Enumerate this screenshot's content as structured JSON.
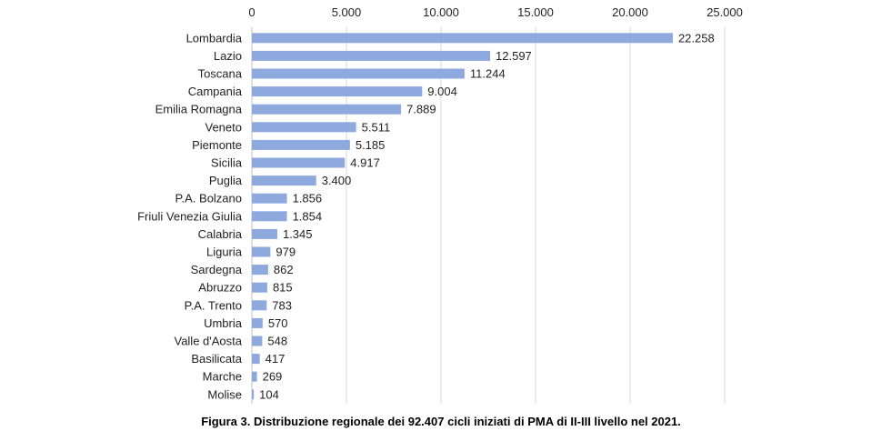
{
  "caption": "Figura 3. Distribuzione regionale dei 92.407 cicli iniziati di PMA di II-III livello nel 2021.",
  "chart_data": {
    "type": "bar",
    "orientation": "horizontal",
    "categories": [
      "Lombardia",
      "Lazio",
      "Toscana",
      "Campania",
      "Emilia Romagna",
      "Veneto",
      "Piemonte",
      "Sicilia",
      "Puglia",
      "P.A. Bolzano",
      "Friuli Venezia Giulia",
      "Calabria",
      "Liguria",
      "Sardegna",
      "Abruzzo",
      "P.A. Trento",
      "Umbria",
      "Valle d'Aosta",
      "Basilicata",
      "Marche",
      "Molise"
    ],
    "values": [
      22258,
      12597,
      11244,
      9004,
      7889,
      5511,
      5185,
      4917,
      3400,
      1856,
      1854,
      1345,
      979,
      862,
      815,
      783,
      570,
      548,
      417,
      269,
      104
    ],
    "value_labels": [
      "22.258",
      "12.597",
      "11.244",
      "9.004",
      "7.889",
      "5.511",
      "5.185",
      "4.917",
      "3.400",
      "1.856",
      "1.854",
      "1.345",
      "979",
      "862",
      "815",
      "783",
      "570",
      "548",
      "417",
      "269",
      "104"
    ],
    "xlim": [
      0,
      25000
    ],
    "xticks": [
      0,
      5000,
      10000,
      15000,
      20000,
      25000
    ],
    "xtick_labels": [
      "0",
      "5.000",
      "10.000",
      "15.000",
      "20.000",
      "25.000"
    ],
    "axis_position": "top",
    "grid": true,
    "bar_color": "#8ea9de",
    "grid_color": "#d9d9d9"
  }
}
